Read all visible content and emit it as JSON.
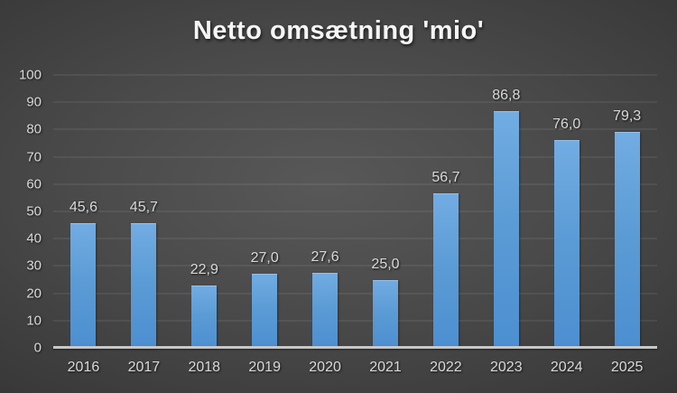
{
  "chart_title": "Netto omsætning 'mio'",
  "colors": {
    "background_center": "#585858",
    "background_edge": "#212121",
    "bar_top": "#72ACE3",
    "bar_mid": "#5B9BD5",
    "bar_bottom": "#4C8FD1",
    "text": "#d9d9d9",
    "title_text": "#f5f5f5",
    "axis_line": "#c7c7c7",
    "gridline": "rgba(255,255,255,0.13)"
  },
  "chart_data": {
    "type": "bar",
    "title": "Netto omsætning 'mio'",
    "categories": [
      "2016",
      "2017",
      "2018",
      "2019",
      "2020",
      "2021",
      "2022",
      "2023",
      "2024",
      "2025"
    ],
    "values": [
      45.6,
      45.7,
      22.9,
      27.0,
      27.6,
      25.0,
      56.7,
      86.8,
      76.0,
      79.3
    ],
    "value_labels": [
      "45,6",
      "45,7",
      "22,9",
      "27,0",
      "27,6",
      "25,0",
      "56,7",
      "86,8",
      "76,0",
      "79,3"
    ],
    "xlabel": "",
    "ylabel": "",
    "ylim": [
      0,
      100
    ],
    "y_ticks": [
      0,
      10,
      20,
      30,
      40,
      50,
      60,
      70,
      80,
      90,
      100
    ],
    "y_tick_labels": [
      "0",
      "10",
      "20",
      "30",
      "40",
      "50",
      "60",
      "70",
      "80",
      "90",
      "100"
    ],
    "grid": true,
    "legend_position": "none",
    "decimal_separator": ","
  }
}
